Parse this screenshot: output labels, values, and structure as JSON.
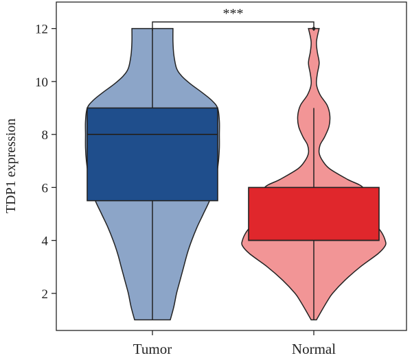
{
  "chart_data": {
    "type": "violin-box",
    "title": "",
    "ylabel": "TDP1 expression",
    "xlabel": "",
    "ylim": [
      0.6,
      13.0
    ],
    "yticks": [
      2,
      4,
      6,
      8,
      10,
      12
    ],
    "categories": [
      "Tumor",
      "Normal"
    ],
    "colors": {
      "Tumor": {
        "violin": "#8ca5c8",
        "box": "#1f4e8c"
      },
      "Normal": {
        "violin": "#f29596",
        "box": "#e0272c"
      }
    },
    "groups": [
      {
        "name": "Tumor",
        "min": 1,
        "q1": 5.5,
        "median": 8,
        "q3": 9,
        "max": 12,
        "outliers": [],
        "density_profile": [
          [
            1.0,
            0.2
          ],
          [
            1.5,
            0.24
          ],
          [
            2.0,
            0.27
          ],
          [
            2.5,
            0.31
          ],
          [
            3.0,
            0.35
          ],
          [
            3.5,
            0.39
          ],
          [
            4.0,
            0.44
          ],
          [
            4.5,
            0.5
          ],
          [
            5.0,
            0.57
          ],
          [
            5.5,
            0.64
          ],
          [
            6.0,
            0.69
          ],
          [
            6.5,
            0.72
          ],
          [
            7.0,
            0.74
          ],
          [
            7.5,
            0.75
          ],
          [
            8.0,
            0.75
          ],
          [
            8.5,
            0.75
          ],
          [
            9.0,
            0.73
          ],
          [
            9.3,
            0.66
          ],
          [
            9.6,
            0.55
          ],
          [
            9.9,
            0.43
          ],
          [
            10.2,
            0.33
          ],
          [
            10.5,
            0.27
          ],
          [
            11.0,
            0.24
          ],
          [
            11.5,
            0.23
          ],
          [
            12.0,
            0.23
          ]
        ]
      },
      {
        "name": "Normal",
        "min": 1,
        "q1": 4,
        "median": 4,
        "q3": 6,
        "max": 9,
        "outliers": [
          12
        ],
        "density_profile": [
          [
            1.0,
            0.03
          ],
          [
            1.3,
            0.08
          ],
          [
            1.7,
            0.15
          ],
          [
            2.0,
            0.21
          ],
          [
            2.5,
            0.35
          ],
          [
            3.0,
            0.52
          ],
          [
            3.5,
            0.72
          ],
          [
            3.8,
            0.8
          ],
          [
            4.0,
            0.8
          ],
          [
            4.3,
            0.76
          ],
          [
            4.7,
            0.67
          ],
          [
            5.0,
            0.63
          ],
          [
            5.5,
            0.58
          ],
          [
            6.0,
            0.55
          ],
          [
            6.3,
            0.38
          ],
          [
            6.7,
            0.18
          ],
          [
            7.0,
            0.1
          ],
          [
            7.3,
            0.06
          ],
          [
            7.6,
            0.07
          ],
          [
            7.9,
            0.12
          ],
          [
            8.3,
            0.17
          ],
          [
            8.7,
            0.18
          ],
          [
            9.1,
            0.15
          ],
          [
            9.5,
            0.07
          ],
          [
            9.9,
            0.03
          ],
          [
            10.3,
            0.04
          ],
          [
            10.7,
            0.06
          ],
          [
            11.1,
            0.04
          ],
          [
            11.5,
            0.03
          ],
          [
            12.0,
            0.06
          ]
        ]
      }
    ],
    "significance": {
      "label": "***",
      "between": [
        "Tumor",
        "Normal"
      ]
    }
  }
}
